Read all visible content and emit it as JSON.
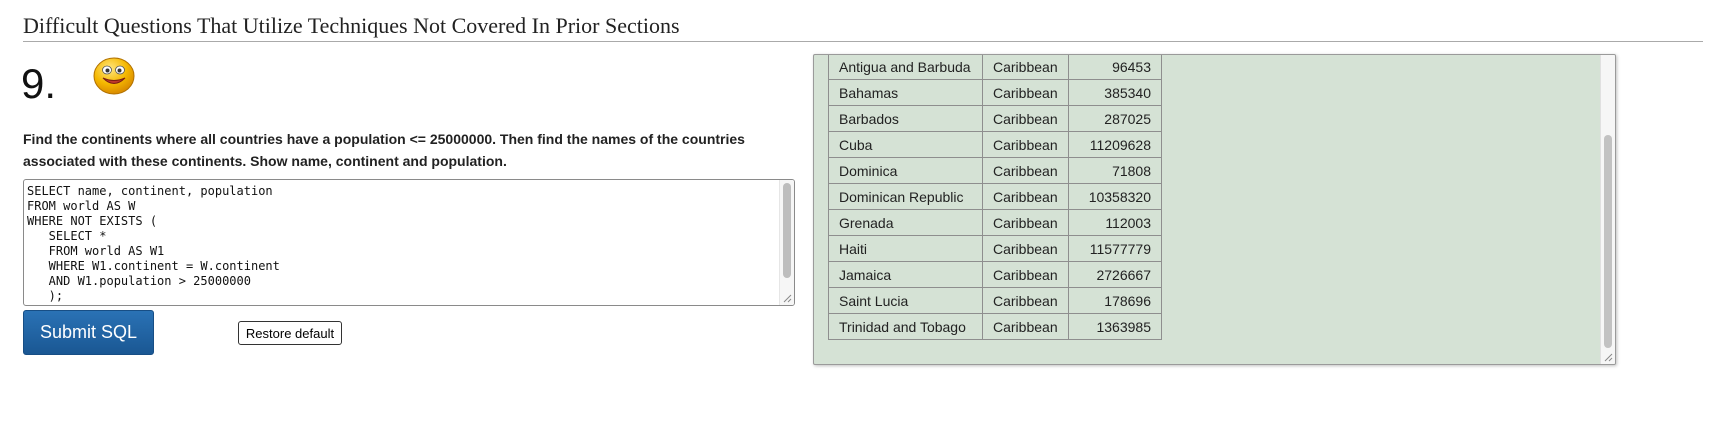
{
  "page": {
    "section_title": "Difficult Questions That Utilize Techniques Not Covered In Prior Sections"
  },
  "question": {
    "number": "9.",
    "icon": "smiley-face-icon",
    "text": "Find the continents where all countries have a population <= 25000000. Then find the names of the countries associated with these continents. Show name, continent and population."
  },
  "editor": {
    "sql": "SELECT name, continent, population\nFROM world AS W\nWHERE NOT EXISTS (\n   SELECT *\n   FROM world AS W1\n   WHERE W1.continent = W.continent\n   AND W1.population > 25000000\n   );"
  },
  "buttons": {
    "submit_label": "Submit SQL",
    "restore_label": "Restore default"
  },
  "colors": {
    "submit_button": "#1c5ea0",
    "results_background": "#d5e2d5"
  },
  "results": {
    "rows": [
      {
        "name": "Antigua and Barbuda",
        "continent": "Caribbean",
        "population": "96453"
      },
      {
        "name": "Bahamas",
        "continent": "Caribbean",
        "population": "385340"
      },
      {
        "name": "Barbados",
        "continent": "Caribbean",
        "population": "287025"
      },
      {
        "name": "Cuba",
        "continent": "Caribbean",
        "population": "11209628"
      },
      {
        "name": "Dominica",
        "continent": "Caribbean",
        "population": "71808"
      },
      {
        "name": "Dominican Republic",
        "continent": "Caribbean",
        "population": "10358320"
      },
      {
        "name": "Grenada",
        "continent": "Caribbean",
        "population": "112003"
      },
      {
        "name": "Haiti",
        "continent": "Caribbean",
        "population": "11577779"
      },
      {
        "name": "Jamaica",
        "continent": "Caribbean",
        "population": "2726667"
      },
      {
        "name": "Saint Lucia",
        "continent": "Caribbean",
        "population": "178696"
      },
      {
        "name": "Trinidad and Tobago",
        "continent": "Caribbean",
        "population": "1363985"
      }
    ]
  }
}
